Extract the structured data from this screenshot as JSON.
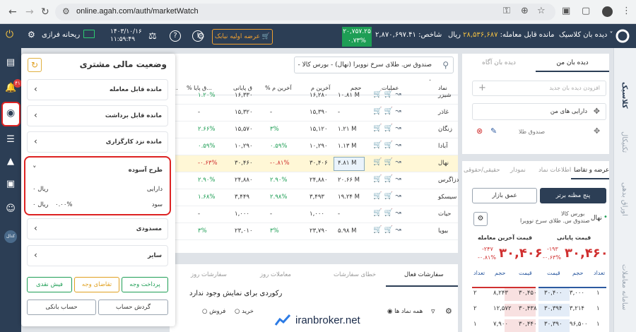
{
  "browser": {
    "url": "online.agah.com/auth/marketWatch"
  },
  "topbar": {
    "view_mode": "دیده بان کلاسیک",
    "balance_label": "مانده قابل معامله:",
    "balance_value": "۲۸,۵۳۶,۶۸۷",
    "balance_unit": "ریال",
    "index_label": "شاخص:",
    "index_value": "۲,۸۷۰,۶۹۷.۴۱",
    "index_box_value": "۲۰,۷۵۷.۲۵",
    "index_box_pct": "۰.۷۳%",
    "offer_button": "عرضه اولیه نیابک",
    "date": "۱۴۰۳/۱۰/۱۶",
    "time": "۱۱:۵۹:۴۹",
    "user_name": "ریحانه فرازی",
    "colors": {
      "bar": "#2c3e55",
      "green": "#1e9e55",
      "orange": "#f0a030"
    }
  },
  "leftbar": {
    "notification_count": "۴۱",
    "kodal_label": "کدال"
  },
  "rightbar": {
    "tabs": [
      "کلاسیک",
      "تکنیکال",
      "اوراق بدهی",
      "سامانه معاملات"
    ]
  },
  "financial_panel": {
    "title": "وضعیت مالی مشتری",
    "items_top": [
      "مانده قابل معامله",
      "مانده قابل برداشت",
      "مانده نزد کارگزاری"
    ],
    "open_item": {
      "label": "طرح آسوده",
      "assets_label": "دارایی",
      "assets_value": "۰ ریال",
      "profit_label": "سود",
      "profit_pct": "۰.۰۰%",
      "profit_value": "۰ ریال"
    },
    "items_bottom": [
      "مسدودی",
      "سایر"
    ],
    "buttons": {
      "deposit": "پرداخت وجه",
      "withdraw_request": "تقاضای وجه",
      "cash_receipt": "فیش نقدی",
      "turnover": "گردش حساب",
      "bank_account": "حساب بانکی"
    }
  },
  "market_table": {
    "search_text": "صندوق س. طلای سرخ نوویرا (نهال) - بورس کالا - ۰",
    "headers": [
      "نماد",
      "عملیات",
      "حجم",
      "آخرین م",
      "% آخرین م",
      "ق پایانی",
      "% ق پایا...",
      "..."
    ],
    "rows": [
      {
        "symbol": "شیزر",
        "volume": "۱۰.۸۱ M",
        "last": "۱۶,۲۸۰",
        "last_pct": "",
        "close": "۱۶,۳۳۰",
        "close_pct": "۱.۲۰%",
        "partial": true
      },
      {
        "symbol": "غاذر",
        "volume": "-",
        "last": "۱۵,۳۹۰",
        "last_pct": "-",
        "close": "۱۵,۳۲۰",
        "close_pct": "-"
      },
      {
        "symbol": "زنگان",
        "volume": "۱.۲۱ M",
        "last": "۱۵,۱۲۰",
        "last_pct": "۳%",
        "close": "۱۵,۵۷۰",
        "close_pct": "۲.۶۶%"
      },
      {
        "symbol": "آبادا",
        "volume": "۱.۱۳ M",
        "last": "۱۰,۲۹۰",
        "last_pct": "۰.۵۹%",
        "close": "۱۰,۲۹۰",
        "close_pct": "۰.۵۹%"
      },
      {
        "symbol": "نهال",
        "volume": "۴.۸۱ M",
        "last": "۳۰,۴۰۶",
        "last_pct": "-۰.۸۱%",
        "close": "۳۰,۴۶۰",
        "close_pct": "-۰.۶۳%",
        "highlight": true
      },
      {
        "symbol": "دزاگرس",
        "volume": "۲۰.۶۶ M",
        "last": "۲۴,۸۸۰",
        "last_pct": "۲.۹۰%",
        "close": "۲۴,۸۸۰",
        "close_pct": "۲.۹۰%"
      },
      {
        "symbol": "سیسکو",
        "volume": "۱۹.۲۴ M",
        "last": "۳,۴۹۳",
        "last_pct": "۲.۹۸%",
        "close": "۳,۴۴۹",
        "close_pct": "۱.۶۸%"
      },
      {
        "symbol": "حیات",
        "volume": "-",
        "last": "۱,۰۰۰",
        "last_pct": "-",
        "close": "۱,۰۰۰",
        "close_pct": "-"
      },
      {
        "symbol": "بیویا",
        "volume": "۵.۹۸ M",
        "last": "۲۳,۷۹۰",
        "last_pct": "۳%",
        "close": "۲۳,۰۱۰",
        "close_pct": "۳%"
      }
    ]
  },
  "bottom_panel": {
    "tabs": [
      "سفارشات فعال",
      "خطای سفارشات",
      "معاملات روز",
      "سفارشات روز"
    ],
    "empty_text": "رکوردی برای نمایش وجود ندارد",
    "filter_all": "همه نماد ها",
    "filter_buy": "خرید",
    "filter_sell": "فروش"
  },
  "watchlist": {
    "tab_mine": "دیده بان من",
    "tab_agah": "دیده بان آگاه",
    "add_placeholder": "افزودن دیده بان جدید",
    "item": "دارایی های من",
    "sub_item": "صندوق طلا"
  },
  "order_panel": {
    "tabs": [
      "عرضه و تقاضا",
      "اطلاعات نماد",
      "نمودار",
      "حقیقی/حقوقی"
    ],
    "btn_five": "پنج مظنه برتر",
    "btn_depth": "عمق بازار",
    "symbol": "نهال",
    "market": "بورس کالا",
    "fund_name": "صندوق س. طلای سرخ نوویرا",
    "close_label": "قیمت پایانی",
    "close_price": "۳۰,۴۶۰",
    "close_change": "-۱۹۳",
    "close_pct": "-۰.۶۳%",
    "last_label": "قیمت آخرین معامله",
    "last_price": "۳۰,۴۰۶",
    "last_change": "-۲۴۷",
    "last_pct": "-۰.۸۱%",
    "ob_headers": [
      "تعداد",
      "حجم",
      "قیمت",
      "قیمت",
      "حجم",
      "تعداد"
    ],
    "ob_rows": [
      [
        "۱",
        "۳,۰۰۰",
        "۳۰,۴۰۰",
        "۳۰,۴۵۰",
        "۸,۲۴۳",
        "۲"
      ],
      [
        "۱",
        "۳,۲۱۴",
        "۳۰,۳۹۴",
        "۳۰,۴۳۸",
        "۱۲,۵۷۲",
        "۲"
      ],
      [
        "۱",
        "۹۶,۵۰۰",
        "۳۰,۳۹۰",
        "۳۰,۴۴۰",
        "۷,۹۰۰",
        "۱"
      ]
    ]
  },
  "watermark": "iranbroker.net"
}
